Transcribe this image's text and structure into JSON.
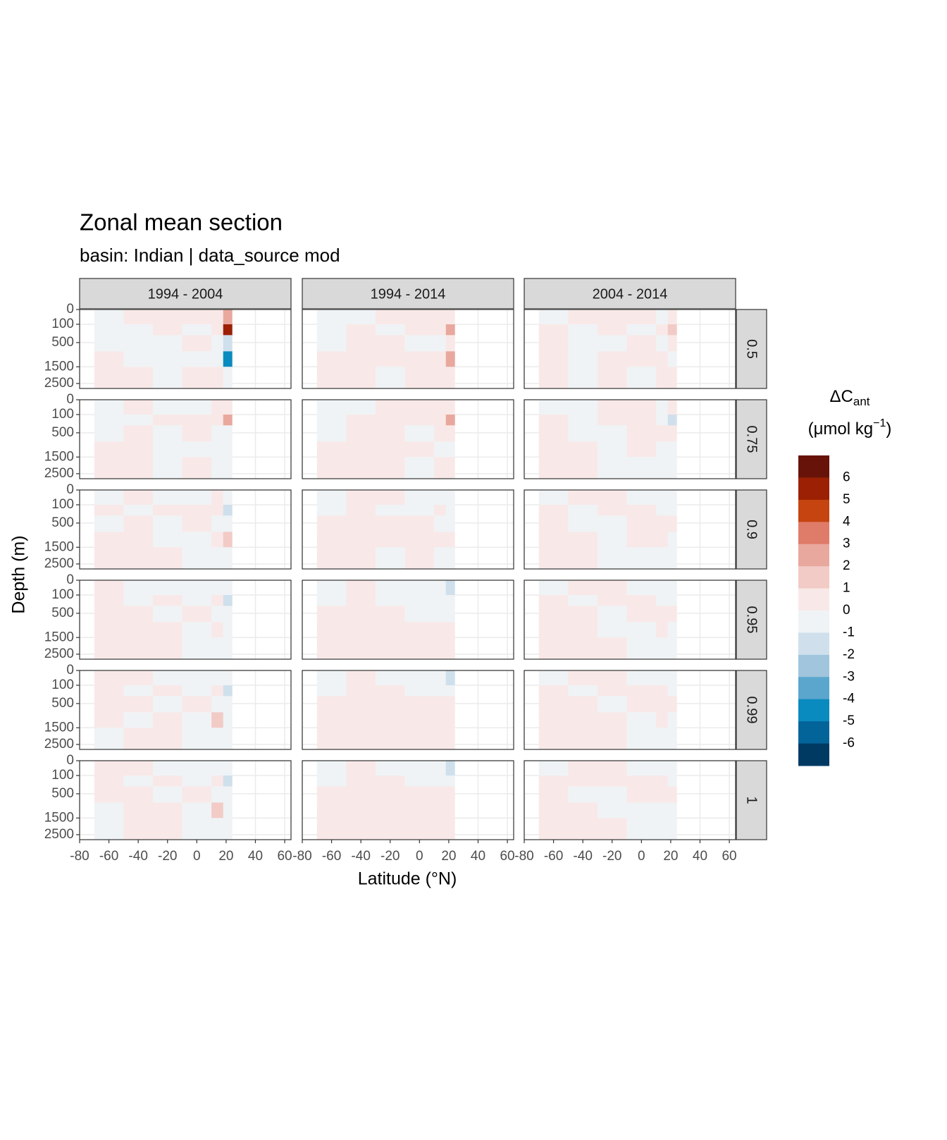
{
  "chart_data": {
    "type": "contour",
    "title": "Zonal mean section",
    "subtitle": "basin: Indian | data_source mod",
    "x_label": "Latitude (°N)",
    "y_label": "Depth (m)",
    "xlim": [
      -80,
      64.3
    ],
    "xticks": [
      -80,
      -60,
      -40,
      -20,
      0,
      20,
      40,
      60
    ],
    "ylim": [
      0,
      2850
    ],
    "yticks": [
      0,
      100,
      500,
      1500,
      2500
    ],
    "y_scale": "sqrt",
    "y_reversed": true,
    "grid": true,
    "col_facets": [
      "1994 - 2004",
      "1994 - 2014",
      "2004 - 2014"
    ],
    "row_facets": [
      "0.5",
      "0.75",
      "0.9",
      "0.95",
      "0.99",
      "1"
    ],
    "lat_edges": [
      -70,
      -50,
      -30,
      -10,
      10,
      18,
      24
    ],
    "depth_edges": [
      0,
      100,
      300,
      800,
      1500,
      2850
    ],
    "panels": [
      [
        [
          [
            -0.5,
            0.5,
            0.5,
            0.5,
            0.5,
            2.5
          ],
          [
            -0.5,
            -0.5,
            0.5,
            -0.5,
            0.5,
            5.5
          ],
          [
            -0.5,
            -0.5,
            -0.5,
            0.5,
            -0.5,
            -1.5
          ],
          [
            0.5,
            -0.5,
            -0.5,
            -0.5,
            -0.5,
            -4.5
          ],
          [
            0.5,
            0.5,
            -0.5,
            0.5,
            0.5,
            -0.5
          ]
        ],
        [
          [
            -0.5,
            -0.5,
            0.5,
            0.5,
            0.5,
            0.5
          ],
          [
            -0.5,
            0.5,
            -0.5,
            0.5,
            0.5,
            2.5
          ],
          [
            -0.5,
            0.5,
            0.5,
            -0.5,
            -0.5,
            0.5
          ],
          [
            0.5,
            0.5,
            0.5,
            0.5,
            0.5,
            2.5
          ],
          [
            0.5,
            0.5,
            -0.5,
            0.5,
            0.5,
            0.5
          ]
        ],
        [
          [
            -0.5,
            0.5,
            0.5,
            0.5,
            -0.5,
            0.5
          ],
          [
            0.5,
            -0.5,
            0.5,
            -0.5,
            0.5,
            1.5
          ],
          [
            0.5,
            -0.5,
            -0.5,
            0.5,
            -0.5,
            0.5
          ],
          [
            0.5,
            -0.5,
            0.5,
            0.5,
            0.5,
            -0.5
          ],
          [
            0.5,
            -0.5,
            0.5,
            -0.5,
            0.5,
            0.5
          ]
        ]
      ],
      [
        [
          [
            -0.5,
            0.5,
            -0.5,
            -0.5,
            0.5,
            0.5
          ],
          [
            -0.5,
            -0.5,
            0.5,
            0.5,
            0.5,
            2.5
          ],
          [
            -0.5,
            0.5,
            -0.5,
            0.5,
            -0.5,
            -0.5
          ],
          [
            0.5,
            0.5,
            -0.5,
            -0.5,
            -0.5,
            -0.5
          ],
          [
            0.5,
            0.5,
            -0.5,
            0.5,
            -0.5,
            -0.5
          ]
        ],
        [
          [
            -0.5,
            -0.5,
            0.5,
            0.5,
            0.5,
            0.5
          ],
          [
            -0.5,
            0.5,
            0.5,
            0.5,
            0.5,
            2.5
          ],
          [
            -0.5,
            0.5,
            0.5,
            -0.5,
            0.5,
            0.5
          ],
          [
            0.5,
            0.5,
            0.5,
            0.5,
            -0.5,
            -0.5
          ],
          [
            0.5,
            0.5,
            0.5,
            -0.5,
            0.5,
            0.5
          ]
        ],
        [
          [
            -0.5,
            -0.5,
            0.5,
            0.5,
            -0.5,
            0.5
          ],
          [
            0.5,
            -0.5,
            0.5,
            0.5,
            -0.5,
            -1.5
          ],
          [
            0.5,
            -0.5,
            -0.5,
            0.5,
            0.5,
            0.5
          ],
          [
            0.5,
            0.5,
            -0.5,
            0.5,
            -0.5,
            -0.5
          ],
          [
            0.5,
            0.5,
            -0.5,
            -0.5,
            -0.5,
            -0.5
          ]
        ]
      ],
      [
        [
          [
            -0.5,
            0.5,
            -0.5,
            -0.5,
            0.5,
            -0.5
          ],
          [
            0.5,
            -0.5,
            0.5,
            0.5,
            0.5,
            -1.5
          ],
          [
            -0.5,
            0.5,
            -0.5,
            0.5,
            -0.5,
            -0.5
          ],
          [
            0.5,
            0.5,
            -0.5,
            -0.5,
            0.5,
            1.5
          ],
          [
            0.5,
            0.5,
            0.5,
            -0.5,
            -0.5,
            -0.5
          ]
        ],
        [
          [
            -0.5,
            0.5,
            0.5,
            -0.5,
            -0.5,
            -0.5
          ],
          [
            -0.5,
            0.5,
            -0.5,
            -0.5,
            0.5,
            -0.5
          ],
          [
            0.5,
            0.5,
            0.5,
            0.5,
            -0.5,
            -0.5
          ],
          [
            0.5,
            0.5,
            0.5,
            0.5,
            0.5,
            0.5
          ],
          [
            0.5,
            0.5,
            -0.5,
            0.5,
            -0.5,
            -0.5
          ]
        ],
        [
          [
            -0.5,
            0.5,
            0.5,
            -0.5,
            -0.5,
            -0.5
          ],
          [
            0.5,
            -0.5,
            0.5,
            0.5,
            -0.5,
            -0.5
          ],
          [
            0.5,
            -0.5,
            -0.5,
            0.5,
            0.5,
            0.5
          ],
          [
            0.5,
            0.5,
            -0.5,
            0.5,
            0.5,
            -0.5
          ],
          [
            0.5,
            0.5,
            -0.5,
            -0.5,
            -0.5,
            -0.5
          ]
        ]
      ],
      [
        [
          [
            0.5,
            -0.5,
            -0.5,
            -0.5,
            -0.5,
            -0.5
          ],
          [
            0.5,
            -0.5,
            0.5,
            -0.5,
            0.5,
            -1.5
          ],
          [
            0.5,
            0.5,
            -0.5,
            0.5,
            -0.5,
            -0.5
          ],
          [
            0.5,
            0.5,
            0.5,
            -0.5,
            0.5,
            -0.5
          ],
          [
            0.5,
            0.5,
            0.5,
            -0.5,
            -0.5,
            -0.5
          ]
        ],
        [
          [
            -0.5,
            0.5,
            -0.5,
            -0.5,
            -0.5,
            -1.5
          ],
          [
            -0.5,
            0.5,
            -0.5,
            -0.5,
            -0.5,
            -0.5
          ],
          [
            0.5,
            0.5,
            0.5,
            -0.5,
            -0.5,
            -0.5
          ],
          [
            0.5,
            0.5,
            0.5,
            0.5,
            0.5,
            0.5
          ],
          [
            0.5,
            0.5,
            0.5,
            0.5,
            0.5,
            0.5
          ]
        ],
        [
          [
            -0.5,
            0.5,
            0.5,
            -0.5,
            -0.5,
            -0.5
          ],
          [
            0.5,
            -0.5,
            0.5,
            0.5,
            -0.5,
            -0.5
          ],
          [
            0.5,
            0.5,
            -0.5,
            0.5,
            0.5,
            0.5
          ],
          [
            0.5,
            0.5,
            -0.5,
            -0.5,
            0.5,
            -0.5
          ],
          [
            0.5,
            0.5,
            0.5,
            -0.5,
            -0.5,
            -0.5
          ]
        ]
      ],
      [
        [
          [
            0.5,
            0.5,
            -0.5,
            -0.5,
            -0.5,
            -0.5
          ],
          [
            0.5,
            -0.5,
            0.5,
            -0.5,
            0.5,
            -1.5
          ],
          [
            0.5,
            0.5,
            -0.5,
            0.5,
            -0.5,
            -0.5
          ],
          [
            0.5,
            -0.5,
            0.5,
            -0.5,
            1.5,
            -0.5
          ],
          [
            -0.5,
            0.5,
            0.5,
            -0.5,
            -0.5,
            -0.5
          ]
        ],
        [
          [
            -0.5,
            0.5,
            -0.5,
            -0.5,
            -0.5,
            -1.5
          ],
          [
            -0.5,
            0.5,
            0.5,
            -0.5,
            -0.5,
            -0.5
          ],
          [
            0.5,
            0.5,
            0.5,
            0.5,
            0.5,
            0.5
          ],
          [
            0.5,
            0.5,
            0.5,
            0.5,
            0.5,
            0.5
          ],
          [
            0.5,
            0.5,
            0.5,
            0.5,
            0.5,
            0.5
          ]
        ],
        [
          [
            -0.5,
            0.5,
            0.5,
            -0.5,
            -0.5,
            -0.5
          ],
          [
            0.5,
            -0.5,
            0.5,
            0.5,
            0.5,
            -0.5
          ],
          [
            0.5,
            0.5,
            -0.5,
            0.5,
            0.5,
            0.5
          ],
          [
            0.5,
            0.5,
            0.5,
            -0.5,
            0.5,
            -0.5
          ],
          [
            0.5,
            0.5,
            0.5,
            -0.5,
            -0.5,
            -0.5
          ]
        ]
      ],
      [
        [
          [
            0.5,
            0.5,
            -0.5,
            -0.5,
            -0.5,
            -0.5
          ],
          [
            0.5,
            -0.5,
            0.5,
            -0.5,
            0.5,
            -1.5
          ],
          [
            0.5,
            0.5,
            -0.5,
            0.5,
            -0.5,
            -0.5
          ],
          [
            -0.5,
            0.5,
            0.5,
            -0.5,
            1.5,
            -0.5
          ],
          [
            -0.5,
            0.5,
            0.5,
            -0.5,
            -0.5,
            -0.5
          ]
        ],
        [
          [
            -0.5,
            0.5,
            -0.5,
            -0.5,
            -0.5,
            -1.5
          ],
          [
            -0.5,
            0.5,
            0.5,
            -0.5,
            -0.5,
            -0.5
          ],
          [
            0.5,
            0.5,
            0.5,
            0.5,
            0.5,
            0.5
          ],
          [
            0.5,
            0.5,
            0.5,
            0.5,
            0.5,
            0.5
          ],
          [
            0.5,
            0.5,
            0.5,
            0.5,
            0.5,
            0.5
          ]
        ],
        [
          [
            -0.5,
            0.5,
            0.5,
            -0.5,
            -0.5,
            -0.5
          ],
          [
            0.5,
            0.5,
            0.5,
            0.5,
            0.5,
            -0.5
          ],
          [
            0.5,
            -0.5,
            -0.5,
            0.5,
            0.5,
            0.5
          ],
          [
            0.5,
            0.5,
            -0.5,
            -0.5,
            -0.5,
            -0.5
          ],
          [
            0.5,
            0.5,
            0.5,
            -0.5,
            -0.5,
            -0.5
          ]
        ]
      ]
    ],
    "legend": {
      "title": "ΔC",
      "title_sub": "ant",
      "unit": "(μmol kg",
      "unit_sup": "−1",
      "unit_end": ")",
      "breaks": [
        6,
        5,
        4,
        3,
        2,
        1,
        0,
        -1,
        -2,
        -3,
        -4,
        -5,
        -6
      ],
      "colors": [
        "#67130a",
        "#9b2004",
        "#c5440f",
        "#df7b69",
        "#e9a89d",
        "#f2cbc6",
        "#f8e9e8",
        "#eff3f6",
        "#cfe0ec",
        "#a0c5dc",
        "#5ba6cd",
        "#0a8bbf",
        "#03649a",
        "#003a63"
      ]
    }
  }
}
